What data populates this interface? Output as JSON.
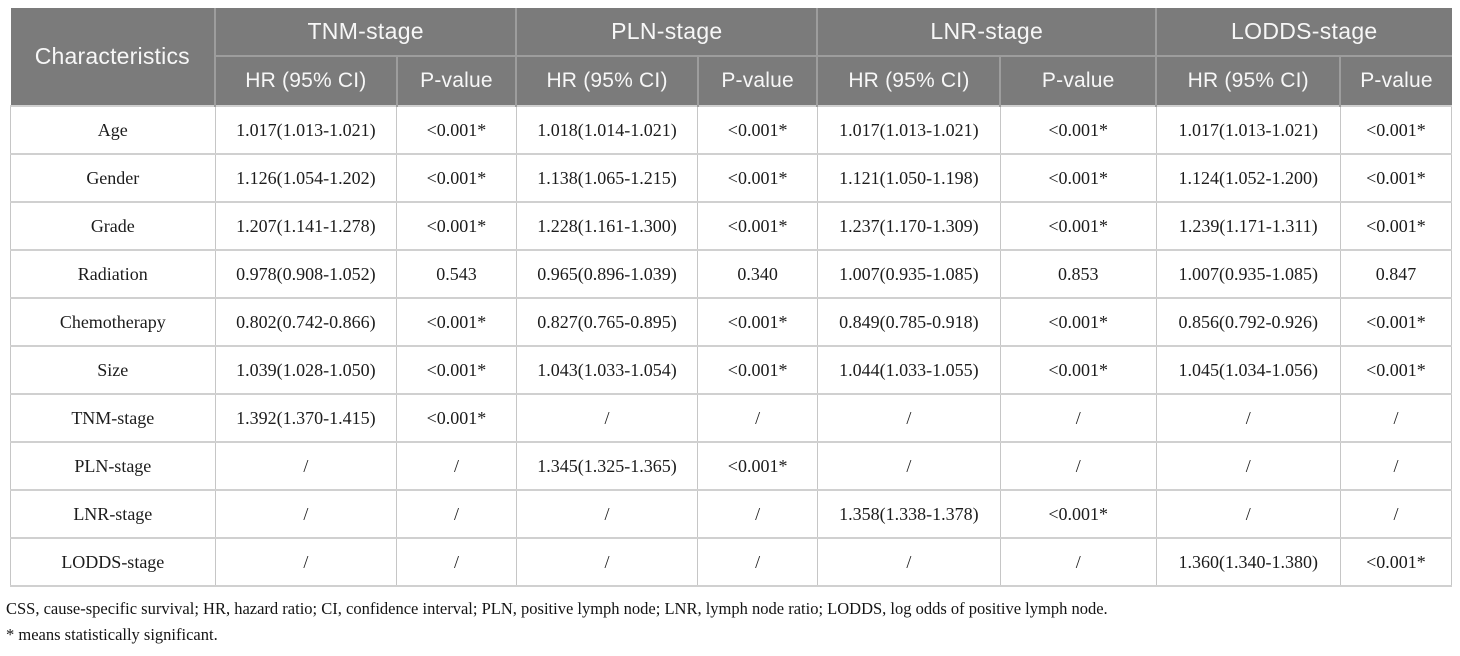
{
  "colors": {
    "header_bg": "#7b7b7b",
    "header_divider": "#9d9d9d",
    "header_text": "#f7f7f7",
    "body_border": "#c9c9c9",
    "body_text": "#1c1c1c"
  },
  "table": {
    "col1_header": "Characteristics",
    "groups": [
      {
        "label": "TNM-stage"
      },
      {
        "label": "PLN-stage"
      },
      {
        "label": "LNR-stage"
      },
      {
        "label": "LODDS-stage"
      }
    ],
    "sub_headers": [
      "HR (95% CI)",
      "P-value"
    ],
    "rows": [
      {
        "characteristic": "Age",
        "cells": [
          "1.017(1.013-1.021)",
          "<0.001*",
          "1.018(1.014-1.021)",
          "<0.001*",
          "1.017(1.013-1.021)",
          "<0.001*",
          "1.017(1.013-1.021)",
          "<0.001*"
        ]
      },
      {
        "characteristic": "Gender",
        "cells": [
          "1.126(1.054-1.202)",
          "<0.001*",
          "1.138(1.065-1.215)",
          "<0.001*",
          "1.121(1.050-1.198)",
          "<0.001*",
          "1.124(1.052-1.200)",
          "<0.001*"
        ]
      },
      {
        "characteristic": "Grade",
        "cells": [
          "1.207(1.141-1.278)",
          "<0.001*",
          "1.228(1.161-1.300)",
          "<0.001*",
          "1.237(1.170-1.309)",
          "<0.001*",
          "1.239(1.171-1.311)",
          "<0.001*"
        ]
      },
      {
        "characteristic": "Radiation",
        "cells": [
          "0.978(0.908-1.052)",
          "0.543",
          "0.965(0.896-1.039)",
          "0.340",
          "1.007(0.935-1.085)",
          "0.853",
          "1.007(0.935-1.085)",
          "0.847"
        ]
      },
      {
        "characteristic": "Chemotherapy",
        "cells": [
          "0.802(0.742-0.866)",
          "<0.001*",
          "0.827(0.765-0.895)",
          "<0.001*",
          "0.849(0.785-0.918)",
          "<0.001*",
          "0.856(0.792-0.926)",
          "<0.001*"
        ]
      },
      {
        "characteristic": "Size",
        "cells": [
          "1.039(1.028-1.050)",
          "<0.001*",
          "1.043(1.033-1.054)",
          "<0.001*",
          "1.044(1.033-1.055)",
          "<0.001*",
          "1.045(1.034-1.056)",
          "<0.001*"
        ]
      },
      {
        "characteristic": "TNM-stage",
        "cells": [
          "1.392(1.370-1.415)",
          "<0.001*",
          "/",
          "/",
          "/",
          "/",
          "/",
          "/"
        ]
      },
      {
        "characteristic": "PLN-stage",
        "cells": [
          "/",
          "/",
          "1.345(1.325-1.365)",
          "<0.001*",
          "/",
          "/",
          "/",
          "/"
        ]
      },
      {
        "characteristic": "LNR-stage",
        "cells": [
          "/",
          "/",
          "/",
          "/",
          "1.358(1.338-1.378)",
          "<0.001*",
          "/",
          "/"
        ]
      },
      {
        "characteristic": "LODDS-stage",
        "cells": [
          "/",
          "/",
          "/",
          "/",
          "/",
          "/",
          "1.360(1.340-1.380)",
          "<0.001*"
        ]
      }
    ]
  },
  "footnotes": [
    "CSS, cause-specific survival; HR, hazard ratio; CI, confidence interval; PLN, positive lymph node; LNR, lymph node ratio; LODDS, log odds of positive lymph node.",
    "* means statistically significant."
  ]
}
